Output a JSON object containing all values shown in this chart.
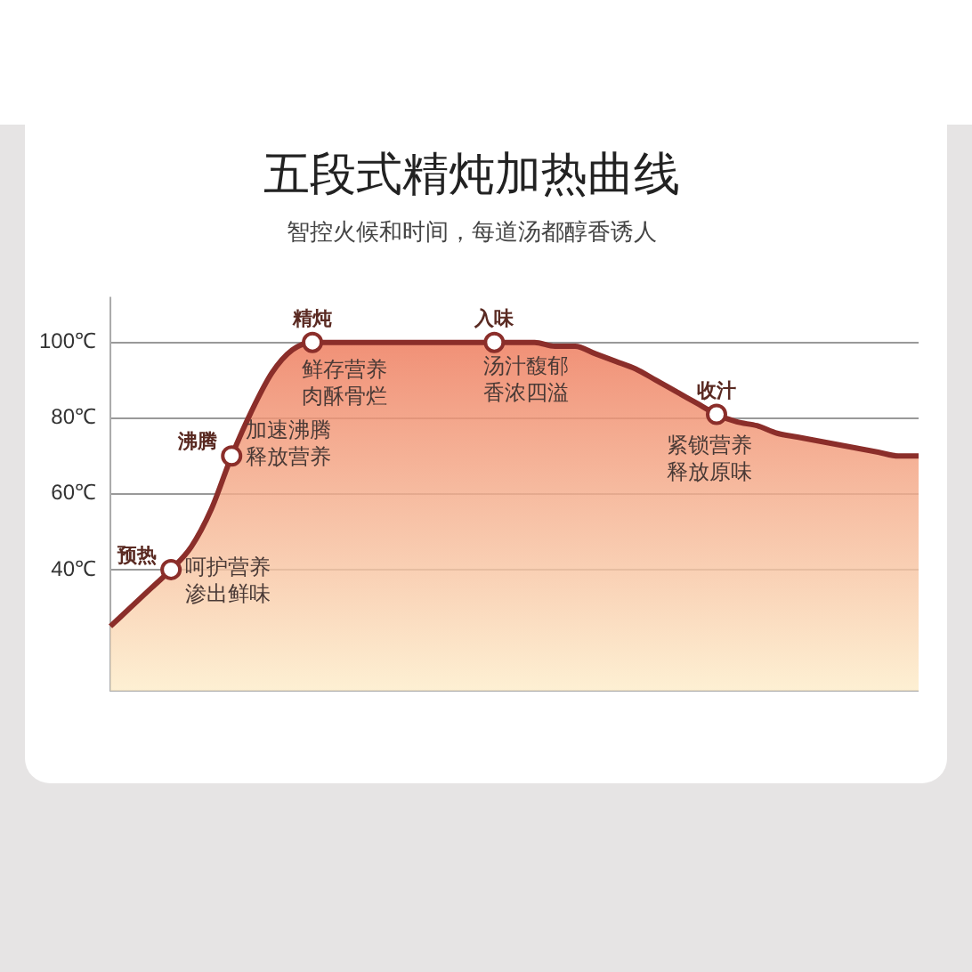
{
  "chart_data": {
    "type": "area",
    "title": "五段式精炖加热曲线",
    "subtitle": "智控火候和时间，每道汤都醇香诱人",
    "categories": [
      null,
      null,
      null,
      null,
      null,
      null,
      null,
      null,
      null,
      null,
      null,
      null,
      null,
      null,
      null,
      null,
      null,
      null,
      null,
      null,
      null,
      null,
      null,
      null,
      null,
      null,
      null,
      null,
      null,
      null,
      null,
      null,
      null,
      null,
      null,
      null,
      null,
      null,
      null,
      null,
      null
    ],
    "series": [
      {
        "color": "#8b2e2a",
        "values": [
          25,
          30,
          35,
          40,
          46,
          56,
          70,
          82,
          92,
          98,
          100,
          100,
          100,
          100,
          100,
          100,
          100,
          100,
          100,
          100,
          100,
          100,
          99,
          99,
          97,
          95,
          93,
          90,
          87,
          84,
          81,
          79,
          78,
          76,
          75,
          74,
          73,
          72,
          71,
          70,
          70
        ],
        "value_labels": [
          null,
          null,
          null,
          "预热",
          null,
          null,
          "沸腾",
          null,
          null,
          null,
          "精炖",
          null,
          null,
          null,
          null,
          null,
          null,
          null,
          null,
          "入味",
          null,
          null,
          null,
          null,
          null,
          null,
          null,
          null,
          null,
          null,
          "收汁",
          null,
          null,
          null,
          null,
          null,
          null,
          null,
          null,
          null,
          null
        ]
      }
    ],
    "ylim": [
      8,
      112
    ],
    "yticks": [
      {
        "value": 40,
        "label": "40℃"
      },
      {
        "value": 60,
        "label": "60℃"
      },
      {
        "value": 80,
        "label": "80℃"
      },
      {
        "value": 100,
        "label": "100℃"
      }
    ],
    "grid": "y",
    "tick_labels": "y",
    "annotations": [
      "呵护营养渗出鲜味",
      "加速沸腾释放营养",
      "鲜存营养肉酥骨烂",
      "汤汁馥郁香浓四溢",
      "紧锁营养释放原味"
    ]
  }
}
